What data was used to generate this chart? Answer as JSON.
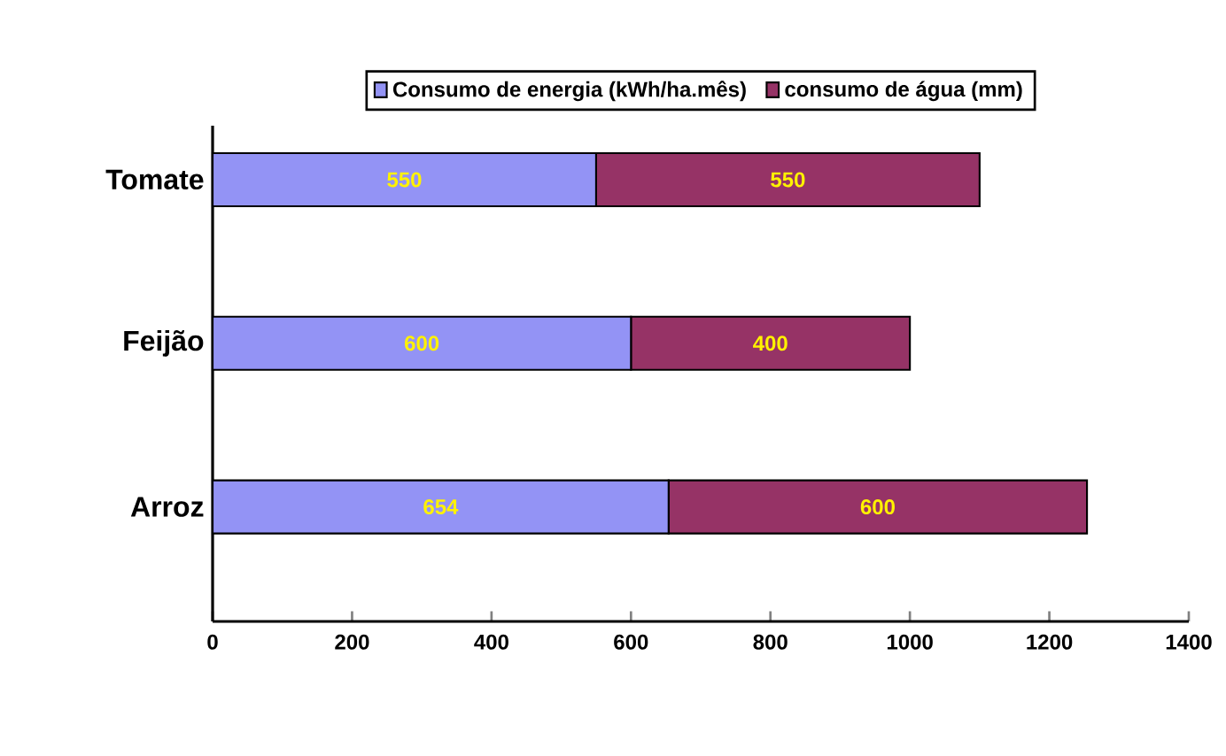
{
  "chart_data": {
    "type": "bar",
    "orientation": "horizontal",
    "stacked": true,
    "data_labels": true,
    "legend": "top",
    "categories": [
      "Tomate",
      "Feijão",
      "Arroz"
    ],
    "series": [
      {
        "name": "Consumo de energia (kWh/ha.mês)",
        "color": "#9393f5",
        "values": [
          550,
          600,
          654
        ],
        "value_labels": [
          "550",
          "600",
          "654"
        ]
      },
      {
        "name": "consumo de água (mm)",
        "color": "#963366",
        "values": [
          550,
          400,
          600
        ],
        "value_labels": [
          "550",
          "400",
          "600"
        ]
      }
    ],
    "xlim": [
      0,
      1400
    ],
    "xticks": [
      0,
      200,
      400,
      600,
      800,
      1000,
      1200,
      1400
    ]
  }
}
